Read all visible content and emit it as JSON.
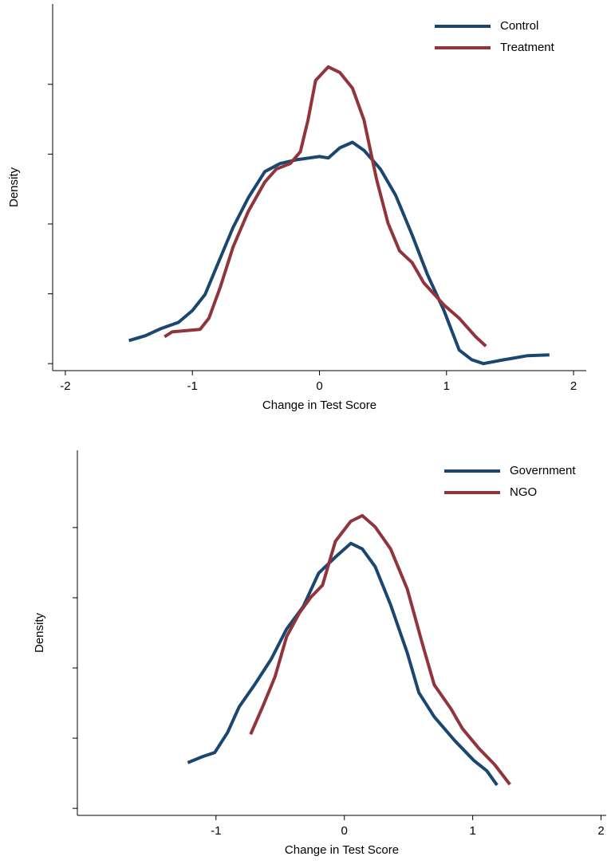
{
  "chart_data": [
    {
      "type": "line",
      "xlabel": "Change in Test Score",
      "ylabel": "Density",
      "xlim": [
        -2.1,
        2.1
      ],
      "xticks": [
        -2,
        -1,
        0,
        1,
        2
      ],
      "ylim": [
        -0.02,
        1.03
      ],
      "yticks": [
        0,
        0.2,
        0.4,
        0.6,
        0.8
      ],
      "legend": "top-right",
      "series": [
        {
          "name": "Control",
          "color": "#1a476f",
          "x": [
            -1.5,
            -1.37,
            -1.25,
            -1.11,
            -1.0,
            -0.9,
            -0.81,
            -0.68,
            -0.56,
            -0.43,
            -0.31,
            -0.18,
            0,
            0.07,
            0.16,
            0.26,
            0.35,
            0.48,
            0.6,
            0.73,
            0.85,
            0.98,
            1.1,
            1.2,
            1.29,
            1.45,
            1.64,
            1.81
          ],
          "values": [
            0.066,
            0.08,
            0.1,
            0.118,
            0.152,
            0.198,
            0.277,
            0.39,
            0.475,
            0.55,
            0.573,
            0.584,
            0.593,
            0.589,
            0.618,
            0.634,
            0.611,
            0.557,
            0.482,
            0.368,
            0.255,
            0.152,
            0.039,
            0.011,
            0,
            0.011,
            0.023,
            0.025
          ]
        },
        {
          "name": "Treatment",
          "color": "#90353b",
          "x": [
            -1.22,
            -1.16,
            -0.94,
            -0.87,
            -0.78,
            -0.68,
            -0.56,
            -0.43,
            -0.34,
            -0.23,
            -0.15,
            -0.09,
            -0.03,
            0.07,
            0.16,
            0.26,
            0.35,
            0.45,
            0.54,
            0.63,
            0.73,
            0.82,
            0.98,
            1.1,
            1.23,
            1.31
          ],
          "values": [
            0.077,
            0.091,
            0.098,
            0.13,
            0.22,
            0.334,
            0.436,
            0.52,
            0.557,
            0.573,
            0.607,
            0.698,
            0.811,
            0.85,
            0.834,
            0.789,
            0.698,
            0.527,
            0.402,
            0.323,
            0.289,
            0.232,
            0.168,
            0.13,
            0.077,
            0.05
          ]
        }
      ]
    },
    {
      "type": "line",
      "xlabel": "Change in Test Score",
      "ylabel": "Density",
      "xlim": [
        -2.08,
        2.04
      ],
      "xticks": [
        -1,
        0,
        1,
        2
      ],
      "ylim": [
        -0.02,
        1.02
      ],
      "yticks": [
        0,
        0.2,
        0.4,
        0.6,
        0.8
      ],
      "legend": "top-right",
      "series": [
        {
          "name": "Government",
          "color": "#1a476f",
          "x": [
            -1.22,
            -1.1,
            -1.01,
            -0.91,
            -0.82,
            -0.7,
            -0.57,
            -0.45,
            -0.32,
            -0.2,
            -0.07,
            0.05,
            0.14,
            0.24,
            0.36,
            0.49,
            0.58,
            0.7,
            0.86,
            1.01,
            1.11,
            1.19
          ],
          "values": [
            0.13,
            0.148,
            0.159,
            0.216,
            0.289,
            0.352,
            0.425,
            0.511,
            0.575,
            0.67,
            0.716,
            0.755,
            0.739,
            0.689,
            0.58,
            0.443,
            0.33,
            0.261,
            0.193,
            0.136,
            0.107,
            0.066
          ]
        },
        {
          "name": "NGO",
          "color": "#90353b",
          "x": [
            -0.73,
            -0.63,
            -0.54,
            -0.45,
            -0.35,
            -0.26,
            -0.17,
            -0.07,
            0.05,
            0.14,
            0.24,
            0.36,
            0.49,
            0.61,
            0.7,
            0.83,
            0.92,
            1.05,
            1.17,
            1.29
          ],
          "values": [
            0.211,
            0.295,
            0.375,
            0.489,
            0.557,
            0.602,
            0.636,
            0.761,
            0.818,
            0.834,
            0.802,
            0.739,
            0.625,
            0.466,
            0.352,
            0.284,
            0.227,
            0.17,
            0.125,
            0.068
          ]
        }
      ]
    }
  ]
}
